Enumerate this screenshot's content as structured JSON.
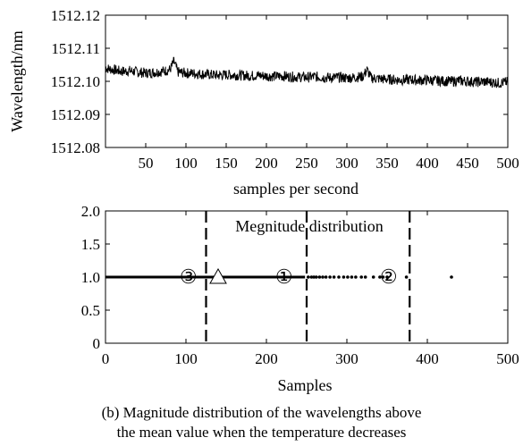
{
  "chart_data": [
    {
      "type": "line",
      "title": "",
      "xlabel": "samples per second",
      "ylabel": "Wavelength/nm",
      "xlim": [
        0,
        500
      ],
      "ylim": [
        1512.08,
        1512.12
      ],
      "x_ticks": [
        "50",
        "100",
        "150",
        "200",
        "250",
        "300",
        "350",
        "400",
        "450",
        "500"
      ],
      "y_ticks": [
        "1512.12",
        "1512.11",
        "1512.10",
        "1512.09",
        "1512.08"
      ],
      "grid": false,
      "series": [
        {
          "x": [
            0,
            10,
            20,
            30,
            40,
            50,
            60,
            70,
            80,
            85,
            90,
            100,
            110,
            120,
            130,
            140,
            150,
            160,
            170,
            180,
            190,
            200,
            210,
            220,
            230,
            240,
            250,
            260,
            270,
            280,
            290,
            300,
            310,
            320,
            325,
            330,
            340,
            350,
            360,
            370,
            380,
            390,
            400,
            410,
            420,
            430,
            440,
            450,
            460,
            470,
            480,
            490,
            500
          ],
          "y": [
            1512.104,
            1512.1035,
            1512.103,
            1512.1032,
            1512.1028,
            1512.1025,
            1512.1027,
            1512.103,
            1512.1035,
            1512.106,
            1512.1028,
            1512.1025,
            1512.1024,
            1512.1022,
            1512.102,
            1512.1018,
            1512.102,
            1512.1019,
            1512.1018,
            1512.1017,
            1512.1018,
            1512.1016,
            1512.1015,
            1512.1016,
            1512.1014,
            1512.1013,
            1512.1012,
            1512.1014,
            1512.1012,
            1512.1011,
            1512.1012,
            1512.101,
            1512.1012,
            1512.1015,
            1512.1035,
            1512.101,
            1512.1008,
            1512.1006,
            1512.1005,
            1512.1004,
            1512.1005,
            1512.1003,
            1512.1004,
            1512.1002,
            1512.1001,
            1512.1,
            1512.1002,
            1512.1,
            1512.0998,
            1512.0999,
            1512.0997,
            1512.0995,
            1512.0998
          ]
        }
      ]
    },
    {
      "type": "scatter",
      "title": "Megnitude distribution",
      "xlabel": "Samples",
      "ylabel": "",
      "xlim": [
        0,
        500
      ],
      "ylim": [
        0,
        2.0
      ],
      "x_ticks": [
        "0",
        "100",
        "200",
        "300",
        "400",
        "500"
      ],
      "y_ticks": [
        "2.0",
        "1.5",
        "1.0",
        "0.5",
        "0"
      ],
      "grid": false,
      "dense_segment": {
        "x": [
          0,
          248
        ],
        "y": 1.0
      },
      "points": [
        {
          "x": 252,
          "y": 1.0
        },
        {
          "x": 256,
          "y": 1.0
        },
        {
          "x": 259,
          "y": 1.0
        },
        {
          "x": 262,
          "y": 1.0
        },
        {
          "x": 266,
          "y": 1.0
        },
        {
          "x": 270,
          "y": 1.0
        },
        {
          "x": 274,
          "y": 1.0
        },
        {
          "x": 279,
          "y": 1.0
        },
        {
          "x": 284,
          "y": 1.0
        },
        {
          "x": 290,
          "y": 1.0
        },
        {
          "x": 296,
          "y": 1.0
        },
        {
          "x": 301,
          "y": 1.0
        },
        {
          "x": 306,
          "y": 1.0
        },
        {
          "x": 311,
          "y": 1.0
        },
        {
          "x": 318,
          "y": 1.0
        },
        {
          "x": 323,
          "y": 1.0
        },
        {
          "x": 333,
          "y": 1.0
        },
        {
          "x": 341,
          "y": 1.0
        },
        {
          "x": 345,
          "y": 1.0
        },
        {
          "x": 350,
          "y": 1.0
        },
        {
          "x": 374,
          "y": 1.0
        },
        {
          "x": 430,
          "y": 1.0
        }
      ],
      "boundaries": [
        125,
        250,
        378
      ],
      "triangle_marker": {
        "x": 140,
        "y": 1.0
      },
      "region_markers": [
        {
          "label": "③",
          "x": 103,
          "y": 1.0
        },
        {
          "label": "①",
          "x": 222,
          "y": 1.0
        },
        {
          "label": "②",
          "x": 352,
          "y": 1.0
        }
      ]
    }
  ],
  "caption_line1": "(b) Magnitude distribution of the wavelengths above",
  "caption_line2": "the mean value when the temperature decreases"
}
